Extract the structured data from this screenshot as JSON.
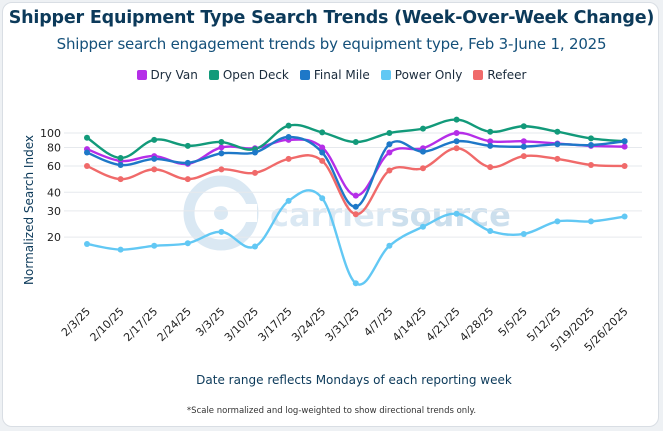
{
  "header": {
    "title": "Shipper Equipment Type Search Trends (Week-Over-Week Change)",
    "subtitle": "Shipper search engagement trends by equipment type, Feb 3-June 1, 2025"
  },
  "footnote": "*Scale normalized and log-weighted to show directional trends only.",
  "watermark": {
    "part1": "carrier",
    "part2": "source"
  },
  "chart_data": {
    "type": "line",
    "title": "Shipper Equipment Type Search Trends (Week-Over-Week Change)",
    "subtitle": "Shipper search engagement trends by equipment type, Feb 3-June 1, 2025",
    "xlabel": "Date range reflects Mondays of each reporting week",
    "ylabel": "Normalized Search Index",
    "y_scale": "log",
    "ylim": [
      10,
      115
    ],
    "y_ticks": [
      20,
      30,
      40,
      60,
      80,
      100
    ],
    "grid": "horizontal",
    "legend_position": "top",
    "categories": [
      "2/3/25",
      "2/10/25",
      "2/17/25",
      "2/24/25",
      "3/3/25",
      "3/10/25",
      "3/17/25",
      "3/24/25",
      "3/31/25",
      "4/7/25",
      "4/14/25",
      "4/21/25",
      "4/28/25",
      "5/5/25",
      "5/12/25",
      "5/19/2025",
      "5/26/2025"
    ],
    "series": [
      {
        "name": "Dry Van",
        "color": "#b52ee8",
        "values": [
          78,
          65,
          70,
          62,
          80,
          79,
          90,
          80,
          38,
          74,
          79,
          100,
          88,
          88,
          85,
          82,
          81
        ]
      },
      {
        "name": "Open Deck",
        "color": "#129a7a",
        "values": [
          93,
          68,
          90,
          82,
          87,
          78,
          112,
          101,
          87,
          100,
          107,
          123,
          102,
          111,
          102,
          92,
          88
        ]
      },
      {
        "name": "Final Mile",
        "color": "#1e78c8",
        "values": [
          74,
          61,
          67,
          63,
          73,
          74,
          94,
          74,
          32,
          84,
          75,
          88,
          82,
          81,
          84,
          83,
          88
        ]
      },
      {
        "name": "Power Only",
        "color": "#62c8f4",
        "values": [
          18,
          16.5,
          17.5,
          18.2,
          21.7,
          17.3,
          35,
          36.5,
          9.8,
          17.5,
          23.5,
          28.7,
          22,
          21,
          25.5,
          25.5,
          27.5
        ]
      },
      {
        "name": "Refeer",
        "color": "#f06a6a",
        "values": [
          60,
          49,
          57,
          49,
          57,
          54,
          67,
          65,
          28.5,
          56,
          58,
          79,
          59,
          70,
          67,
          61,
          60
        ]
      }
    ]
  }
}
